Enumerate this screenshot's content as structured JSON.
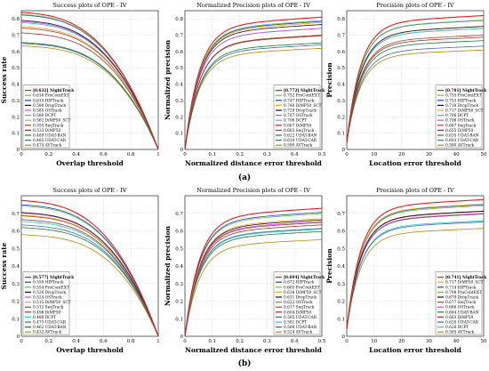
{
  "row_labels": [
    "(a)",
    "(b)"
  ],
  "chart_data": [
    {
      "type": "line",
      "title": "Success plots of OPE - IV",
      "xlabel": "Overlap threshold",
      "ylabel": "Success rate",
      "xlim": [
        0,
        1
      ],
      "ylim": [
        0,
        0.85
      ],
      "xticks": [
        "0",
        "0.2",
        "0.4",
        "0.6",
        "0.8",
        "1"
      ],
      "yticks": [
        "0",
        "0.1",
        "0.2",
        "0.3",
        "0.4",
        "0.5",
        "0.6",
        "0.7",
        "0.8"
      ],
      "curve": "success",
      "grid": true,
      "legend_position": "bottom-left",
      "series": [
        {
          "score": "[0.632]",
          "name": "NightTrack",
          "color": "#e41a1c",
          "highlight": true
        },
        {
          "score": "0.618",
          "name": "ProContEXT",
          "color": "#66c24a"
        },
        {
          "score": "0.615",
          "name": "HIPTrack",
          "color": "#1f3fbf"
        },
        {
          "score": "0.590",
          "name": "DropTrack",
          "color": "#111111"
        },
        {
          "score": "0.585",
          "name": "OSTrack",
          "color": "#e040e0"
        },
        {
          "score": "0.580",
          "name": "DCPT",
          "color": "#20c8d8"
        },
        {
          "score": "0.562",
          "name": "DiMP50_SCT",
          "color": "#f0a020"
        },
        {
          "score": "0.555",
          "name": "SeqTrack",
          "color": "#9a4a20"
        },
        {
          "score": "0.533",
          "name": "DiMP50",
          "color": "#a52a2a"
        },
        {
          "score": "0.489",
          "name": "UDAT-BAN",
          "color": "#1e7a34"
        },
        {
          "score": "0.485",
          "name": "UDAT-CAR",
          "color": "#3a6ea5"
        },
        {
          "score": "0.474",
          "name": "AVTrack",
          "color": "#b8860b"
        }
      ]
    },
    {
      "type": "line",
      "title": "Normalized Precision plots of OPE - IV",
      "xlabel": "Normalized distance error threshold",
      "ylabel": "Normalized precision",
      "xlim": [
        0,
        0.5
      ],
      "ylim": [
        0,
        0.85
      ],
      "xticks": [
        "0",
        "0.1",
        "0.2",
        "0.3",
        "0.4",
        "0.5"
      ],
      "yticks": [
        "0",
        "0.1",
        "0.2",
        "0.3",
        "0.4",
        "0.5",
        "0.6",
        "0.7",
        "0.8"
      ],
      "curve": "normprec",
      "grid": true,
      "legend_position": "bottom-right",
      "series": [
        {
          "score": "[0.772]",
          "name": "NightTrack",
          "color": "#e41a1c",
          "highlight": true
        },
        {
          "score": "0.752",
          "name": "ProContEXT",
          "color": "#66c24a"
        },
        {
          "score": "0.747",
          "name": "HIPTrack",
          "color": "#1f3fbf"
        },
        {
          "score": "0.740",
          "name": "DiMP50_SCT",
          "color": "#f0a020"
        },
        {
          "score": "0.729",
          "name": "DropTrack",
          "color": "#111111"
        },
        {
          "score": "0.707",
          "name": "OSTrack",
          "color": "#e040e0"
        },
        {
          "score": "0.706",
          "name": "DCPT",
          "color": "#20c8d8"
        },
        {
          "score": "0.667",
          "name": "DiMP50",
          "color": "#a52a2a"
        },
        {
          "score": "0.663",
          "name": "SeqTrack",
          "color": "#9a4a20"
        },
        {
          "score": "0.622",
          "name": "UDAT-BAN",
          "color": "#1e7a34"
        },
        {
          "score": "0.610",
          "name": "UDAT-CAR",
          "color": "#3a6ea5"
        },
        {
          "score": "0.590",
          "name": "AVTrack",
          "color": "#b8860b"
        }
      ]
    },
    {
      "type": "line",
      "title": "Precision plots of OPE - IV",
      "xlabel": "Location error threshold",
      "ylabel": "Precision",
      "xlim": [
        0,
        50
      ],
      "ylim": [
        0,
        0.85
      ],
      "xticks": [
        "0",
        "10",
        "20",
        "30",
        "40",
        "50"
      ],
      "yticks": [
        "0",
        "0.1",
        "0.2",
        "0.3",
        "0.4",
        "0.5",
        "0.6",
        "0.7",
        "0.8"
      ],
      "curve": "prec",
      "grid": true,
      "legend_position": "bottom-right",
      "series": [
        {
          "score": "[0.781]",
          "name": "NightTrack",
          "color": "#e41a1c",
          "highlight": true
        },
        {
          "score": "0.755",
          "name": "ProContEXT",
          "color": "#66c24a"
        },
        {
          "score": "0.753",
          "name": "HIPTrack",
          "color": "#1f3fbf"
        },
        {
          "score": "0.718",
          "name": "DropTrack",
          "color": "#111111"
        },
        {
          "score": "0.717",
          "name": "DiMP50_SCT",
          "color": "#f0a020"
        },
        {
          "score": "0.706",
          "name": "DCPT",
          "color": "#20c8d8"
        },
        {
          "score": "0.706",
          "name": "OSTrack",
          "color": "#e040e0"
        },
        {
          "score": "0.667",
          "name": "SeqTrack",
          "color": "#9a4a20"
        },
        {
          "score": "0.655",
          "name": "DiMP50",
          "color": "#a52a2a"
        },
        {
          "score": "0.635",
          "name": "UDAT-BAN",
          "color": "#1e7a34"
        },
        {
          "score": "0.603",
          "name": "UDAT-CAR",
          "color": "#3a6ea5"
        },
        {
          "score": "0.580",
          "name": "AVTrack",
          "color": "#b8860b"
        }
      ]
    },
    {
      "type": "line",
      "title": "Success plots of OPE - IV",
      "xlabel": "Overlap threshold",
      "ylabel": "Success rate",
      "xlim": [
        0,
        1
      ],
      "ylim": [
        0,
        0.8
      ],
      "xticks": [
        "0",
        "0.2",
        "0.4",
        "0.6",
        "0.8",
        "1"
      ],
      "yticks": [
        "0",
        "0.1",
        "0.2",
        "0.3",
        "0.4",
        "0.5",
        "0.6",
        "0.7"
      ],
      "curve": "success",
      "grid": true,
      "legend_position": "bottom-left",
      "series": [
        {
          "score": "[0.577]",
          "name": "NightTrack",
          "color": "#e41a1c",
          "highlight": true
        },
        {
          "score": "0.559",
          "name": "HIPTrack",
          "color": "#1f3fbf"
        },
        {
          "score": "0.554",
          "name": "ProContEXT",
          "color": "#66c24a"
        },
        {
          "score": "0.526",
          "name": "DropTrack",
          "color": "#111111"
        },
        {
          "score": "0.524",
          "name": "OSTrack",
          "color": "#e040e0"
        },
        {
          "score": "0.515",
          "name": "DiMP50_SCT",
          "color": "#f0a020"
        },
        {
          "score": "0.512",
          "name": "SeqTrack",
          "color": "#9a4a20"
        },
        {
          "score": "0.496",
          "name": "DiMP50",
          "color": "#a52a2a"
        },
        {
          "score": "0.488",
          "name": "DCPT",
          "color": "#20c8d8"
        },
        {
          "score": "0.473",
          "name": "UDAT-CAR",
          "color": "#3a6ea5"
        },
        {
          "score": "0.462",
          "name": "UDAT-BAN",
          "color": "#1e7a34"
        },
        {
          "score": "0.432",
          "name": "AVTrack",
          "color": "#b8860b"
        }
      ]
    },
    {
      "type": "line",
      "title": "Normalized Precision plots of OPE - IV",
      "xlabel": "Normalized distance error threshold",
      "ylabel": "Normalized precision",
      "xlim": [
        0,
        0.5
      ],
      "ylim": [
        0,
        0.8
      ],
      "xticks": [
        "0",
        "0.1",
        "0.2",
        "0.3",
        "0.4",
        "0.5"
      ],
      "yticks": [
        "0",
        "0.1",
        "0.2",
        "0.3",
        "0.4",
        "0.5",
        "0.6",
        "0.7"
      ],
      "curve": "normprec",
      "grid": true,
      "legend_position": "bottom-right",
      "series": [
        {
          "score": "[0.694]",
          "name": "NightTrack",
          "color": "#e41a1c",
          "highlight": true
        },
        {
          "score": "0.672",
          "name": "HIPTrack",
          "color": "#1f3fbf"
        },
        {
          "score": "0.665",
          "name": "ProContEXT",
          "color": "#66c24a"
        },
        {
          "score": "0.638",
          "name": "DiMP50_SCT",
          "color": "#f0a020"
        },
        {
          "score": "0.631",
          "name": "DropTrack",
          "color": "#111111"
        },
        {
          "score": "0.622",
          "name": "OSTrack",
          "color": "#e040e0"
        },
        {
          "score": "0.617",
          "name": "SeqTrack",
          "color": "#9a4a20"
        },
        {
          "score": "0.604",
          "name": "DiMP50",
          "color": "#a52a2a"
        },
        {
          "score": "0.585",
          "name": "UDAT-CAR",
          "color": "#3a6ea5"
        },
        {
          "score": "0.581",
          "name": "DCPT",
          "color": "#20c8d8"
        },
        {
          "score": "0.568",
          "name": "UDAT-BAN",
          "color": "#1e7a34"
        },
        {
          "score": "0.524",
          "name": "AVTrack",
          "color": "#b8860b"
        }
      ]
    },
    {
      "type": "line",
      "title": "Precision plots of OPE - IV",
      "xlabel": "Location error threshold",
      "ylabel": "Precision",
      "xlim": [
        0,
        50
      ],
      "ylim": [
        0,
        0.8
      ],
      "xticks": [
        "0",
        "10",
        "20",
        "30",
        "40",
        "50"
      ],
      "yticks": [
        "0",
        "0.1",
        "0.2",
        "0.3",
        "0.4",
        "0.5",
        "0.6",
        "0.7"
      ],
      "curve": "prec",
      "grid": true,
      "legend_position": "bottom-right",
      "series": [
        {
          "score": "[0.741]",
          "name": "NightTrack",
          "color": "#e41a1c",
          "highlight": true
        },
        {
          "score": "0.717",
          "name": "DiMP50_SCT",
          "color": "#f0a020"
        },
        {
          "score": "0.714",
          "name": "HIPTrack",
          "color": "#1f3fbf"
        },
        {
          "score": "0.708",
          "name": "ProContEXT",
          "color": "#66c24a"
        },
        {
          "score": "0.679",
          "name": "DropTrack",
          "color": "#111111"
        },
        {
          "score": "0.677",
          "name": "SeqTrack",
          "color": "#9a4a20"
        },
        {
          "score": "0.666",
          "name": "OSTrack",
          "color": "#e040e0"
        },
        {
          "score": "0.664",
          "name": "UDAT-BAN",
          "color": "#1e7a34"
        },
        {
          "score": "0.663",
          "name": "DiMP50",
          "color": "#a52a2a"
        },
        {
          "score": "0.620",
          "name": "UDAT-CAR",
          "color": "#3a6ea5"
        },
        {
          "score": "0.626",
          "name": "DCPT",
          "color": "#20c8d8"
        },
        {
          "score": "0.585",
          "name": "AVTrack",
          "color": "#b8860b"
        }
      ]
    }
  ]
}
